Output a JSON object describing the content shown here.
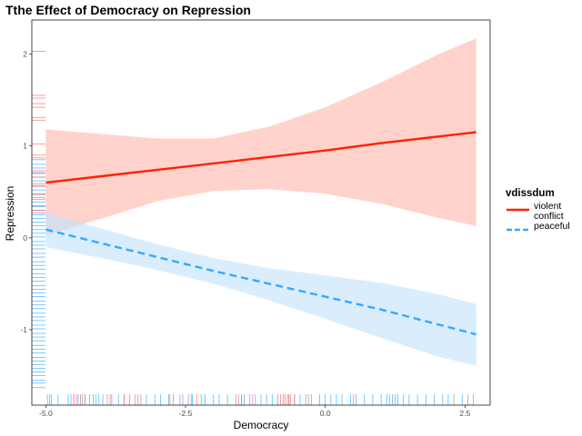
{
  "chart_data": {
    "type": "line",
    "title": "Tthe Effect of Democracy on Repression",
    "xlabel": "Democracy",
    "ylabel": "Repression",
    "xlim": [
      -5.25,
      2.95
    ],
    "ylim": [
      -1.82,
      2.37
    ],
    "x_ticks": [
      -5.0,
      -2.5,
      0.0,
      2.5
    ],
    "x_tick_labels": [
      "-5.0",
      "-2.5",
      "0.0",
      "2.5"
    ],
    "y_ticks": [
      -1,
      0,
      1,
      2
    ],
    "y_tick_labels": [
      "-1",
      "0",
      "1",
      "2"
    ],
    "grid": false,
    "legend": {
      "title": "vdissdum",
      "position": "right",
      "entries": [
        {
          "lines": [
            "violent",
            "conflict"
          ],
          "color": "#ff2200",
          "dash": "solid"
        },
        {
          "lines": [
            "peaceful"
          ],
          "color": "#35a9ff",
          "dash": "dashed"
        }
      ]
    },
    "series": [
      {
        "name": "violent conflict",
        "color": "#ff2200",
        "ribbon_color": "#ffb8ac",
        "x": [
          -5.0,
          -4.0,
          -3.0,
          -2.0,
          -1.0,
          0.0,
          1.0,
          2.0,
          2.7
        ],
        "y": [
          0.6,
          0.67,
          0.74,
          0.81,
          0.88,
          0.95,
          1.03,
          1.1,
          1.15
        ],
        "lower": [
          0.03,
          0.21,
          0.4,
          0.51,
          0.53,
          0.48,
          0.37,
          0.22,
          0.13
        ],
        "upper": [
          1.18,
          1.13,
          1.08,
          1.08,
          1.21,
          1.42,
          1.69,
          1.99,
          2.17
        ]
      },
      {
        "name": "peaceful",
        "color": "#35a9ff",
        "ribbon_color": "#c2e2fb",
        "x": [
          -5.0,
          -4.0,
          -3.0,
          -2.0,
          -1.0,
          0.0,
          1.0,
          2.0,
          2.7
        ],
        "y": [
          0.09,
          -0.06,
          -0.21,
          -0.36,
          -0.5,
          -0.64,
          -0.78,
          -0.94,
          -1.05
        ],
        "lower": [
          -0.1,
          -0.22,
          -0.35,
          -0.5,
          -0.68,
          -0.88,
          -1.09,
          -1.29,
          -1.39
        ],
        "upper": [
          0.28,
          0.1,
          -0.07,
          -0.22,
          -0.33,
          -0.41,
          -0.49,
          -0.61,
          -0.72
        ]
      }
    ],
    "rug_x": [
      {
        "color": "#35a9ff",
        "values": [
          -4.97,
          -4.93,
          -4.9,
          -4.78,
          -4.6,
          -4.55,
          -4.5,
          -4.42,
          -4.35,
          -4.3,
          -4.22,
          -4.15,
          -4.1,
          -4.05,
          -3.98,
          -3.9,
          -3.82,
          -3.7,
          -3.6,
          -3.5,
          -3.35,
          -3.2,
          -3.05,
          -2.95,
          -2.8,
          -2.72,
          -2.55,
          -2.45,
          -2.38,
          -2.22,
          -2.15,
          -2.0,
          -1.9,
          -1.75,
          -1.6,
          -1.5,
          -1.45,
          -1.35,
          -1.25,
          -1.15,
          -1.05,
          -0.95,
          -0.85,
          -0.75,
          -0.65,
          -0.55,
          -0.45,
          -0.35,
          -0.25,
          -0.1,
          0.0,
          0.1,
          0.2,
          0.3,
          0.45,
          0.55,
          0.7,
          0.85,
          1.0,
          1.1,
          1.15,
          1.2,
          1.25,
          1.3,
          1.4,
          1.5,
          1.65,
          1.8,
          1.95,
          2.1,
          2.2,
          2.3,
          2.45,
          2.55,
          2.65
        ]
      },
      {
        "color": "#ff6b55",
        "values": [
          -4.5,
          -4.45,
          -4.38,
          -4.3,
          -3.85,
          -3.6,
          -3.4,
          -3.3,
          -2.78,
          -2.6,
          -2.4,
          -2.3,
          -1.55,
          -1.5,
          -1.3,
          -0.8,
          -0.72,
          -0.68,
          -0.65,
          -0.62,
          -0.55,
          -0.3,
          0.5
        ]
      }
    ],
    "rug_y": [
      {
        "color": "#35a9ff",
        "values": [
          0.85,
          0.8,
          0.76,
          0.71,
          0.66,
          0.62,
          0.57,
          0.52,
          0.48,
          0.44,
          0.39,
          0.34,
          0.3,
          0.25,
          0.21,
          0.17,
          0.13,
          0.09,
          0.05,
          0.01,
          -0.04,
          -0.08,
          -0.12,
          -0.17,
          -0.21,
          -0.26,
          -0.3,
          -0.34,
          -0.39,
          -0.43,
          -0.47,
          -0.52,
          -0.56,
          -0.6,
          -0.64,
          -0.69,
          -0.73,
          -0.77,
          -0.82,
          -0.86,
          -0.9,
          -0.95,
          -0.99,
          -1.04,
          -1.08,
          -1.12,
          -1.17,
          -1.21,
          -1.25,
          -1.3,
          -1.34,
          -1.38,
          -1.42,
          -1.46,
          -1.5,
          -1.55,
          -1.58,
          -1.63
        ]
      },
      {
        "color": "#ff6b55",
        "values": [
          2.03,
          1.55,
          1.52,
          1.46,
          1.42,
          1.31,
          1.28,
          1.02,
          0.9,
          0.87,
          0.73,
          0.7,
          0.66,
          0.59,
          0.56,
          0.47,
          0.42,
          0.35,
          0.3,
          0.27
        ]
      }
    ]
  }
}
